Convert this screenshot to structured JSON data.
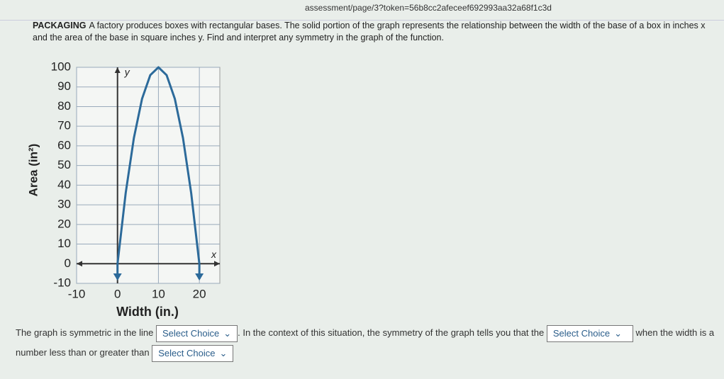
{
  "url": "assessment/page/3?token=56b8cc2afeceef692993aa32a68f1c3d",
  "problem": {
    "label": "PACKAGING",
    "text": "A factory produces boxes with rectangular bases. The solid portion of the graph represents the relationship between the width of the base of a box in inches x and the area of the base in square inches y. Find and interpret any symmetry in the graph of the function."
  },
  "chart_data": {
    "type": "line",
    "x_label": "Width (in.)",
    "y_label": "Area (in²)",
    "x_axis_letter": "x",
    "y_axis_letter": "y",
    "x": [
      0,
      2,
      4,
      6,
      8,
      10,
      12,
      14,
      16,
      18,
      20
    ],
    "series": [
      {
        "name": "y",
        "color": "#2c6a9a",
        "values": [
          0,
          36,
          64,
          84,
          96,
          100,
          96,
          84,
          64,
          36,
          0
        ]
      }
    ],
    "xlim": [
      -10,
      25
    ],
    "xticks": [
      -10,
      0,
      10,
      20
    ],
    "ylim": [
      -10,
      100
    ],
    "yticks": [
      -10,
      0,
      10,
      20,
      30,
      40,
      50,
      60,
      70,
      80,
      90,
      100
    ],
    "grid": true
  },
  "prompt": {
    "part1": "The graph is symmetric in the line",
    "part2": ". In the context of this situation, the symmetry of the graph tells you that the",
    "part3": "when the width is a number less than or greater than",
    "select": "Select Choice"
  }
}
